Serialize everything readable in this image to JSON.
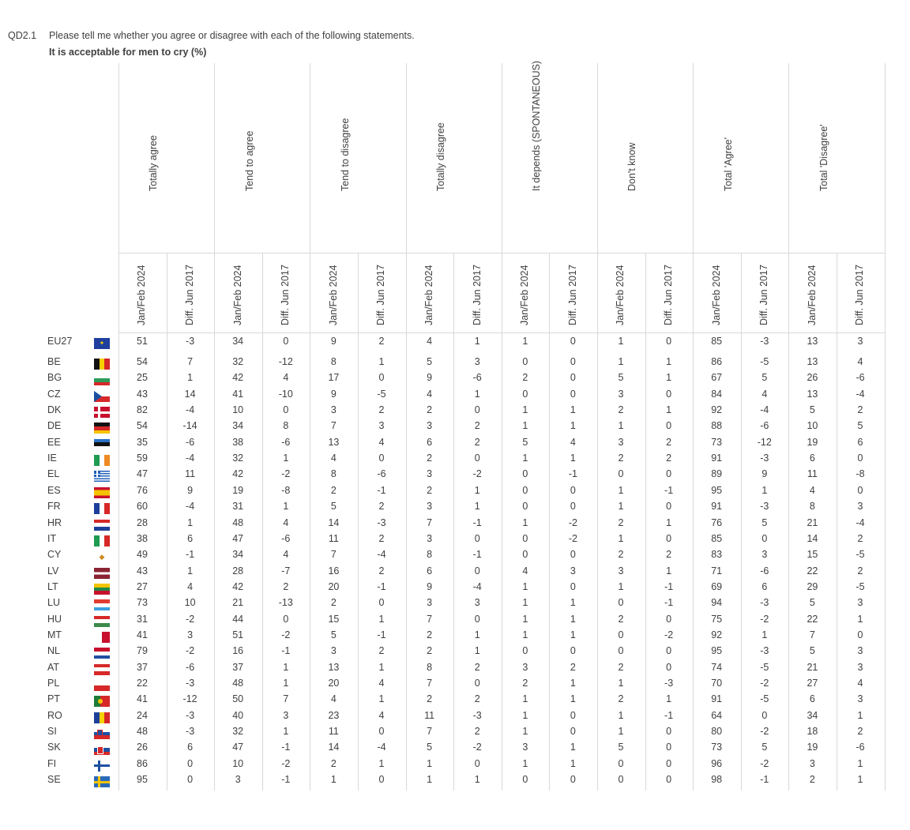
{
  "question": {
    "id": "QD2.1",
    "text": "Please tell me whether you agree or disagree with each of the following statements.",
    "subtitle": "It is acceptable for men to cry (%)"
  },
  "groups": [
    "Totally agree",
    "Tend to agree",
    "Tend to disagree",
    "Totally disagree",
    "It depends (SPONTANEOUS)",
    "Don't know",
    "Total 'Agree'",
    "Total 'Disagree'"
  ],
  "sub_columns": [
    "Jan/Feb 2024",
    "Diff. Jun 2017"
  ],
  "rows": [
    {
      "country": "EU27",
      "flag": "eu",
      "values": [
        "51",
        "-3",
        "34",
        "0",
        "9",
        "2",
        "4",
        "1",
        "1",
        "0",
        "1",
        "0",
        "85",
        "-3",
        "13",
        "3"
      ]
    },
    {
      "country": "BE",
      "flag": "be",
      "values": [
        "54",
        "7",
        "32",
        "-12",
        "8",
        "1",
        "5",
        "3",
        "0",
        "0",
        "1",
        "1",
        "86",
        "-5",
        "13",
        "4"
      ]
    },
    {
      "country": "BG",
      "flag": "bg",
      "values": [
        "25",
        "1",
        "42",
        "4",
        "17",
        "0",
        "9",
        "-6",
        "2",
        "0",
        "5",
        "1",
        "67",
        "5",
        "26",
        "-6"
      ]
    },
    {
      "country": "CZ",
      "flag": "cz",
      "values": [
        "43",
        "14",
        "41",
        "-10",
        "9",
        "-5",
        "4",
        "1",
        "0",
        "0",
        "3",
        "0",
        "84",
        "4",
        "13",
        "-4"
      ]
    },
    {
      "country": "DK",
      "flag": "dk",
      "values": [
        "82",
        "-4",
        "10",
        "0",
        "3",
        "2",
        "2",
        "0",
        "1",
        "1",
        "2",
        "1",
        "92",
        "-4",
        "5",
        "2"
      ]
    },
    {
      "country": "DE",
      "flag": "de",
      "values": [
        "54",
        "-14",
        "34",
        "8",
        "7",
        "3",
        "3",
        "2",
        "1",
        "1",
        "1",
        "0",
        "88",
        "-6",
        "10",
        "5"
      ]
    },
    {
      "country": "EE",
      "flag": "ee",
      "values": [
        "35",
        "-6",
        "38",
        "-6",
        "13",
        "4",
        "6",
        "2",
        "5",
        "4",
        "3",
        "2",
        "73",
        "-12",
        "19",
        "6"
      ]
    },
    {
      "country": "IE",
      "flag": "ie",
      "values": [
        "59",
        "-4",
        "32",
        "1",
        "4",
        "0",
        "2",
        "0",
        "1",
        "1",
        "2",
        "2",
        "91",
        "-3",
        "6",
        "0"
      ]
    },
    {
      "country": "EL",
      "flag": "el",
      "values": [
        "47",
        "11",
        "42",
        "-2",
        "8",
        "-6",
        "3",
        "-2",
        "0",
        "-1",
        "0",
        "0",
        "89",
        "9",
        "11",
        "-8"
      ]
    },
    {
      "country": "ES",
      "flag": "es",
      "values": [
        "76",
        "9",
        "19",
        "-8",
        "2",
        "-1",
        "2",
        "1",
        "0",
        "0",
        "1",
        "-1",
        "95",
        "1",
        "4",
        "0"
      ]
    },
    {
      "country": "FR",
      "flag": "fr",
      "values": [
        "60",
        "-4",
        "31",
        "1",
        "5",
        "2",
        "3",
        "1",
        "0",
        "0",
        "1",
        "0",
        "91",
        "-3",
        "8",
        "3"
      ]
    },
    {
      "country": "HR",
      "flag": "hr",
      "values": [
        "28",
        "1",
        "48",
        "4",
        "14",
        "-3",
        "7",
        "-1",
        "1",
        "-2",
        "2",
        "1",
        "76",
        "5",
        "21",
        "-4"
      ]
    },
    {
      "country": "IT",
      "flag": "it",
      "values": [
        "38",
        "6",
        "47",
        "-6",
        "11",
        "2",
        "3",
        "0",
        "0",
        "-2",
        "1",
        "0",
        "85",
        "0",
        "14",
        "2"
      ]
    },
    {
      "country": "CY",
      "flag": "cy",
      "values": [
        "49",
        "-1",
        "34",
        "4",
        "7",
        "-4",
        "8",
        "-1",
        "0",
        "0",
        "2",
        "2",
        "83",
        "3",
        "15",
        "-5"
      ]
    },
    {
      "country": "LV",
      "flag": "lv",
      "values": [
        "43",
        "1",
        "28",
        "-7",
        "16",
        "2",
        "6",
        "0",
        "4",
        "3",
        "3",
        "1",
        "71",
        "-6",
        "22",
        "2"
      ]
    },
    {
      "country": "LT",
      "flag": "lt",
      "values": [
        "27",
        "4",
        "42",
        "2",
        "20",
        "-1",
        "9",
        "-4",
        "1",
        "0",
        "1",
        "-1",
        "69",
        "6",
        "29",
        "-5"
      ]
    },
    {
      "country": "LU",
      "flag": "lu",
      "values": [
        "73",
        "10",
        "21",
        "-13",
        "2",
        "0",
        "3",
        "3",
        "1",
        "1",
        "0",
        "-1",
        "94",
        "-3",
        "5",
        "3"
      ]
    },
    {
      "country": "HU",
      "flag": "hu",
      "values": [
        "31",
        "-2",
        "44",
        "0",
        "15",
        "1",
        "7",
        "0",
        "1",
        "1",
        "2",
        "0",
        "75",
        "-2",
        "22",
        "1"
      ]
    },
    {
      "country": "MT",
      "flag": "mt",
      "values": [
        "41",
        "3",
        "51",
        "-2",
        "5",
        "-1",
        "2",
        "1",
        "1",
        "1",
        "0",
        "-2",
        "92",
        "1",
        "7",
        "0"
      ]
    },
    {
      "country": "NL",
      "flag": "nl",
      "values": [
        "79",
        "-2",
        "16",
        "-1",
        "3",
        "2",
        "2",
        "1",
        "0",
        "0",
        "0",
        "0",
        "95",
        "-3",
        "5",
        "3"
      ]
    },
    {
      "country": "AT",
      "flag": "at",
      "values": [
        "37",
        "-6",
        "37",
        "1",
        "13",
        "1",
        "8",
        "2",
        "3",
        "2",
        "2",
        "0",
        "74",
        "-5",
        "21",
        "3"
      ]
    },
    {
      "country": "PL",
      "flag": "pl",
      "values": [
        "22",
        "-3",
        "48",
        "1",
        "20",
        "4",
        "7",
        "0",
        "2",
        "1",
        "1",
        "-3",
        "70",
        "-2",
        "27",
        "4"
      ]
    },
    {
      "country": "PT",
      "flag": "pt",
      "values": [
        "41",
        "-12",
        "50",
        "7",
        "4",
        "1",
        "2",
        "2",
        "1",
        "1",
        "2",
        "1",
        "91",
        "-5",
        "6",
        "3"
      ]
    },
    {
      "country": "RO",
      "flag": "ro",
      "values": [
        "24",
        "-3",
        "40",
        "3",
        "23",
        "4",
        "11",
        "-3",
        "1",
        "0",
        "1",
        "-1",
        "64",
        "0",
        "34",
        "1"
      ]
    },
    {
      "country": "SI",
      "flag": "si",
      "values": [
        "48",
        "-3",
        "32",
        "1",
        "11",
        "0",
        "7",
        "2",
        "1",
        "0",
        "1",
        "0",
        "80",
        "-2",
        "18",
        "2"
      ]
    },
    {
      "country": "SK",
      "flag": "sk",
      "values": [
        "26",
        "6",
        "47",
        "-1",
        "14",
        "-4",
        "5",
        "-2",
        "3",
        "1",
        "5",
        "0",
        "73",
        "5",
        "19",
        "-6"
      ]
    },
    {
      "country": "FI",
      "flag": "fi",
      "values": [
        "86",
        "0",
        "10",
        "-2",
        "2",
        "1",
        "1",
        "0",
        "1",
        "1",
        "0",
        "0",
        "96",
        "-2",
        "3",
        "1"
      ]
    },
    {
      "country": "SE",
      "flag": "se",
      "values": [
        "95",
        "0",
        "3",
        "-1",
        "1",
        "0",
        "1",
        "1",
        "0",
        "0",
        "0",
        "0",
        "98",
        "-1",
        "2",
        "1"
      ]
    }
  ],
  "colors": {
    "text": "#404040",
    "grid": "#d9d9d9"
  }
}
